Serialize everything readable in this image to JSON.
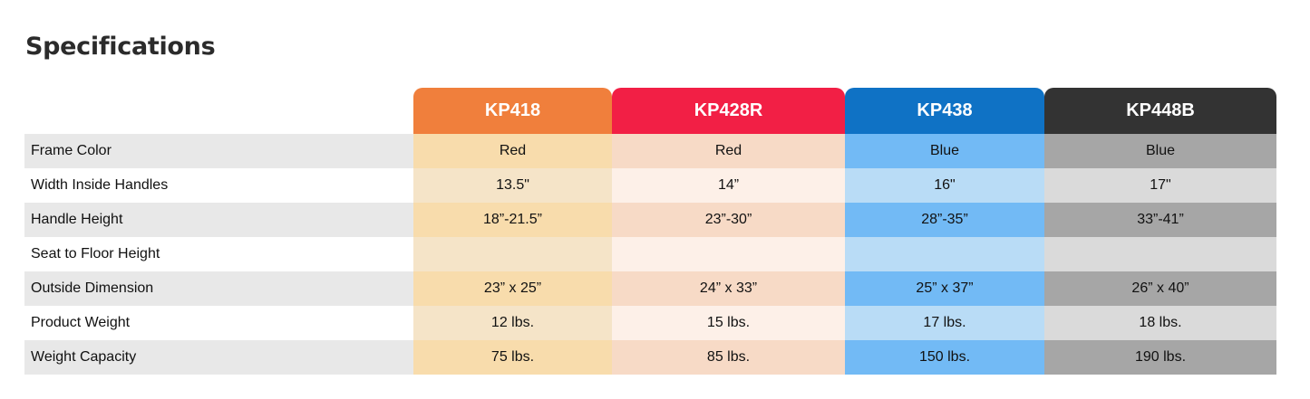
{
  "header": {
    "title": "Specifications"
  },
  "table": {
    "columns": [
      "KP418",
      "KP428R",
      "KP438",
      "KP448B"
    ],
    "rows": [
      {
        "label": "Frame Color",
        "values": [
          "Red",
          "Red",
          "Blue",
          "Blue"
        ]
      },
      {
        "label": "Width Inside Handles",
        "values": [
          "13.5\"",
          "14”",
          "16\"",
          "17\""
        ]
      },
      {
        "label": "Handle Height",
        "values": [
          "18”-21.5”",
          "23”-30”",
          "28”-35”",
          "33”-41”"
        ]
      },
      {
        "label": "Seat to Floor Height",
        "values": [
          null,
          null,
          null,
          null
        ]
      },
      {
        "label": "Outside Dimension",
        "values": [
          "23” x 25”",
          "24” x 33”",
          "25” x 37”",
          "26” x 40”"
        ]
      },
      {
        "label": "Product Weight",
        "values": [
          "12 lbs.",
          "15 lbs.",
          "17 lbs.",
          "18 lbs."
        ]
      },
      {
        "label": "Weight Capacity",
        "values": [
          "75 lbs.",
          "85 lbs.",
          "150 lbs.",
          "190 lbs."
        ]
      }
    ]
  }
}
